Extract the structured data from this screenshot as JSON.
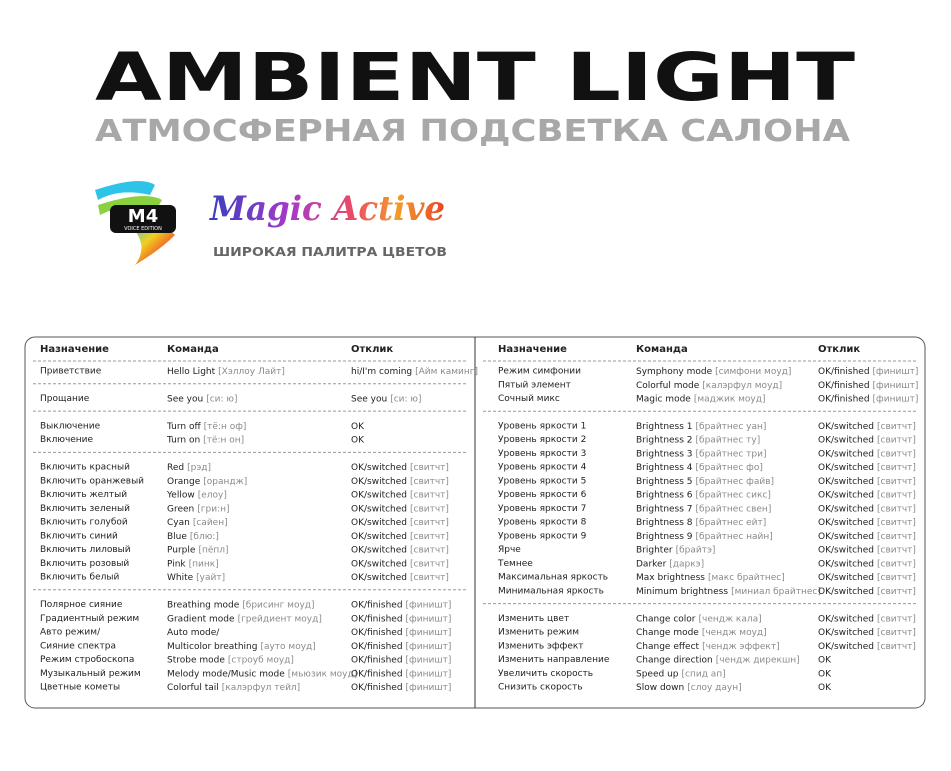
{
  "header": {
    "title": "AMBIENT LIGHT",
    "subtitle": "АТМОСФЕРНАЯ ПОДСВЕТКА САЛОНА"
  },
  "logo": {
    "badge": "M4",
    "edition": "VOICE EDITION",
    "brand": "Magic Active",
    "tagline": "ШИРОКАЯ ПАЛИТРА ЦВЕТОВ"
  },
  "table": {
    "left": {
      "headers": [
        "Назначение",
        "Команда",
        "Отклик"
      ],
      "groups": [
        [
          {
            "p": "Приветствие",
            "c": "Hello Light",
            "ch": "[Хэллоу Лайт]",
            "r": "hi/I'm coming",
            "rh": "[Айм каминг]"
          }
        ],
        [
          {
            "p": "Прощание",
            "c": "See you",
            "ch": "[си: ю]",
            "r": "See you",
            "rh": "[си: ю]"
          }
        ],
        [
          {
            "p": "Выключение",
            "c": "Turn off",
            "ch": "[тё:н оф]",
            "r": "OK"
          },
          {
            "p": "Включение",
            "c": "Turn on",
            "ch": "[тё:н он]",
            "r": "OK"
          }
        ],
        [
          {
            "p": "Включить красный",
            "c": "Red",
            "ch": "[рэд]",
            "r": "OK/switched",
            "rh": "[свитчт]"
          },
          {
            "p": "Включить оранжевый",
            "c": "Orange",
            "ch": "[орандж]",
            "r": "OK/switched",
            "rh": "[свитчт]"
          },
          {
            "p": "Включить желтый",
            "c": "Yellow",
            "ch": "[елоу]",
            "r": "OK/switched",
            "rh": "[свитчт]"
          },
          {
            "p": "Включить зеленый",
            "c": "Green",
            "ch": "[гри:н]",
            "r": "OK/switched",
            "rh": "[свитчт]"
          },
          {
            "p": "Включить голубой",
            "c": "Cyan",
            "ch": "[сайен]",
            "r": "OK/switched",
            "rh": "[свитчт]"
          },
          {
            "p": "Включить синий",
            "c": "Blue",
            "ch": "[блю:]",
            "r": "OK/switched",
            "rh": "[свитчт]"
          },
          {
            "p": "Включить лиловый",
            "c": "Purple",
            "ch": "[пёпл]",
            "r": "OK/switched",
            "rh": "[свитчт]"
          },
          {
            "p": "Включить розовый",
            "c": "Pink",
            "ch": "[пинк]",
            "r": "OK/switched",
            "rh": "[свитчт]"
          },
          {
            "p": "Включить белый",
            "c": "White",
            "ch": "[уайт]",
            "r": "OK/switched",
            "rh": "[свитчт]"
          }
        ],
        [
          {
            "p": "Полярное сияние",
            "c": "Breathing mode",
            "ch": "[брисинг моуд]",
            "r": "OK/finished",
            "rh": "[финишт]"
          },
          {
            "p": "Градиентный режим",
            "c": "Gradient mode",
            "ch": "[грейдиент моуд]",
            "r": "OK/finished",
            "rh": "[финишт]"
          },
          {
            "p": "Авто режим/",
            "c": "Auto mode/",
            "r": "OK/finished",
            "rh": "[финишт]"
          },
          {
            "p": "Сияние спектра",
            "c": "Multicolor breathing",
            "ch": "[ауто моуд]",
            "r": "OK/finished",
            "rh": "[финишт]"
          },
          {
            "p": "Режим стробоскопа",
            "c": "Strobe mode",
            "ch": "[строуб моуд]",
            "r": "OK/finished",
            "rh": "[финишт]"
          },
          {
            "p": "Музыкальный режим",
            "c": "Melody mode/Music mode",
            "ch": "[мьюзик моуд]",
            "r": "OK/finished",
            "rh": "[финишт]"
          },
          {
            "p": "Цветные кометы",
            "c": "Colorful tail",
            "ch": "[калэрфул тейл]",
            "r": "OK/finished",
            "rh": "[финишт]"
          }
        ]
      ]
    },
    "right": {
      "headers": [
        "Назначение",
        "Команда",
        "Отклик"
      ],
      "groups": [
        [
          {
            "p": "Режим симфонии",
            "c": "Symphony mode",
            "ch": "[симфони моуд]",
            "r": "OK/finished",
            "rh": "[финишт]"
          },
          {
            "p": "Пятый элемент",
            "c": "Colorful mode",
            "ch": "[калэрфул моуд]",
            "r": "OK/finished",
            "rh": "[финишт]"
          },
          {
            "p": "Сочный микс",
            "c": "Magic mode",
            "ch": "[маджик моуд]",
            "r": "OK/finished",
            "rh": "[финишт]"
          }
        ],
        [
          {
            "p": "Уровень яркости 1",
            "c": "Brightness 1",
            "ch": "[брайтнес уан]",
            "r": "OK/switched",
            "rh": "[свитчт]"
          },
          {
            "p": "Уровень яркости 2",
            "c": "Brightness 2",
            "ch": "[брайтнес ту]",
            "r": "OK/switched",
            "rh": "[свитчт]"
          },
          {
            "p": "Уровень яркости 3",
            "c": "Brightness 3",
            "ch": "[брайтнес три]",
            "r": "OK/switched",
            "rh": "[свитчт]"
          },
          {
            "p": "Уровень яркости 4",
            "c": "Brightness 4",
            "ch": "[брайтнес фо]",
            "r": "OK/switched",
            "rh": "[свитчт]"
          },
          {
            "p": "Уровень яркости 5",
            "c": "Brightness 5",
            "ch": "[брайтнес файв]",
            "r": "OK/switched",
            "rh": "[свитчт]"
          },
          {
            "p": "Уровень яркости 6",
            "c": "Brightness 6",
            "ch": "[брайтнес сикс]",
            "r": "OK/switched",
            "rh": "[свитчт]"
          },
          {
            "p": "Уровень яркости 7",
            "c": "Brightness 7",
            "ch": "[брайтнес свен]",
            "r": "OK/switched",
            "rh": "[свитчт]"
          },
          {
            "p": "Уровень яркости 8",
            "c": "Brightness 8",
            "ch": "[брайтнес ейт]",
            "r": "OK/switched",
            "rh": "[свитчт]"
          },
          {
            "p": "Уровень яркости 9",
            "c": "Brightness 9",
            "ch": "[брайтнес найн]",
            "r": "OK/switched",
            "rh": "[свитчт]"
          },
          {
            "p": "Ярче",
            "c": "Brighter",
            "ch": "[брайтэ]",
            "r": "OK/switched",
            "rh": "[свитчт]"
          },
          {
            "p": "Темнее",
            "c": "Darker",
            "ch": "[даркэ]",
            "r": "OK/switched",
            "rh": "[свитчт]"
          },
          {
            "p": "Максимальная яркость",
            "c": "Max brightness",
            "ch": "[макс брайтнес]",
            "r": "OK/switched",
            "rh": "[свитчт]"
          },
          {
            "p": "Минимальная яркость",
            "c": "Minimum brightness",
            "ch": "[миниал брайтнес]",
            "r": "OK/switched",
            "rh": "[свитчт]"
          }
        ],
        [
          {
            "p": "Изменить цвет",
            "c": "Change color",
            "ch": "[чендж кала]",
            "r": "OK/switched",
            "rh": "[свитчт]"
          },
          {
            "p": "Изменить режим",
            "c": "Change mode",
            "ch": "[чендж моуд]",
            "r": "OK/switched",
            "rh": "[свитчт]"
          },
          {
            "p": "Изменить эффект",
            "c": "Change effect",
            "ch": "[чендж эффект]",
            "r": "OK/switched",
            "rh": "[свитчт]"
          },
          {
            "p": "Изменить направление",
            "c": "Change direction",
            "ch": "[чендж дирекшн]",
            "r": "OK"
          },
          {
            "p": "Увеличить скорость",
            "c": "Speed up",
            "ch": "[спид ап]",
            "r": "OK"
          },
          {
            "p": "Снизить скорость",
            "c": "Slow down",
            "ch": "[слоу даун]",
            "r": "OK"
          }
        ]
      ]
    }
  }
}
